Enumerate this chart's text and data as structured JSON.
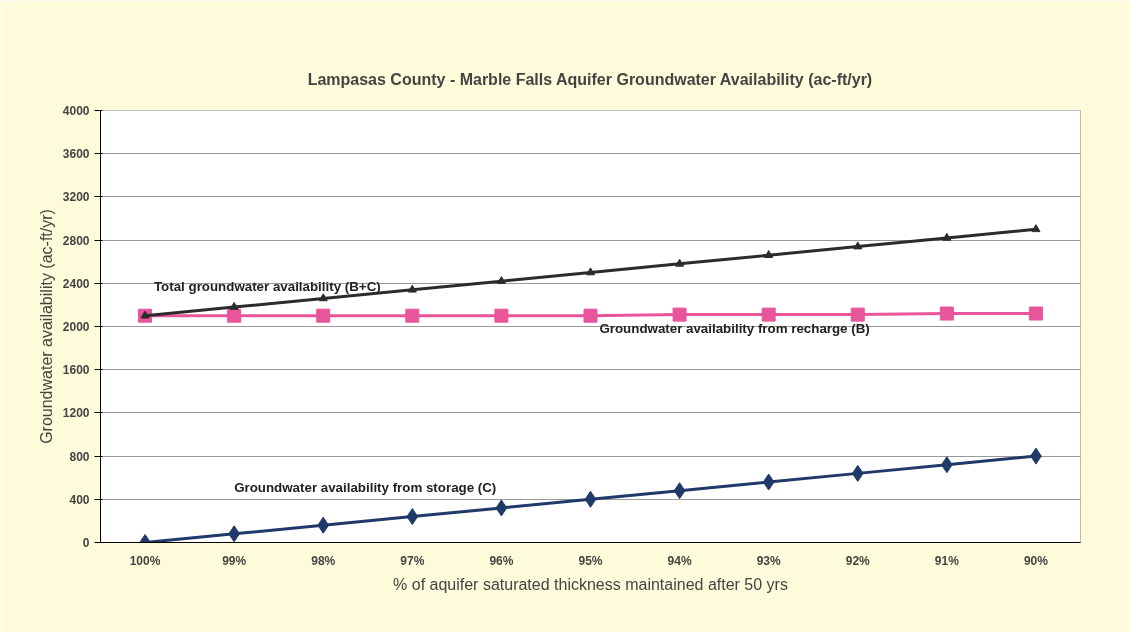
{
  "chart_data": {
    "type": "line",
    "title": "Lampasas County - Marble Falls Aquifer Groundwater Availability (ac-ft/yr)",
    "xlabel": "% of aquifer saturated thickness maintained after 50 yrs",
    "ylabel": "Groundwater availability (ac-ft/yr)",
    "categories": [
      "100%",
      "99%",
      "98%",
      "97%",
      "96%",
      "95%",
      "94%",
      "93%",
      "92%",
      "91%",
      "90%"
    ],
    "series": [
      {
        "name": "Total groundwater availability (B+C)",
        "color": "#2b2b2b",
        "marker": "triangle",
        "values": [
          2100,
          2180,
          2260,
          2340,
          2420,
          2500,
          2580,
          2660,
          2740,
          2820,
          2900
        ]
      },
      {
        "name": "Groundwater availability from recharge (B)",
        "color": "#e8559b",
        "marker": "square",
        "values": [
          2100,
          2100,
          2100,
          2100,
          2100,
          2100,
          2110,
          2110,
          2110,
          2120,
          2120
        ]
      },
      {
        "name": "Groundwater availability from storage (C)",
        "color": "#1f3a68",
        "marker": "diamond",
        "values": [
          0,
          80,
          160,
          240,
          320,
          400,
          480,
          560,
          640,
          720,
          800
        ]
      }
    ],
    "ylim": [
      0,
      4000
    ],
    "yticks": [
      0,
      400,
      800,
      1200,
      1600,
      2000,
      2400,
      2800,
      3200,
      3600,
      4000
    ],
    "grid": "y",
    "line_style": "solid"
  }
}
